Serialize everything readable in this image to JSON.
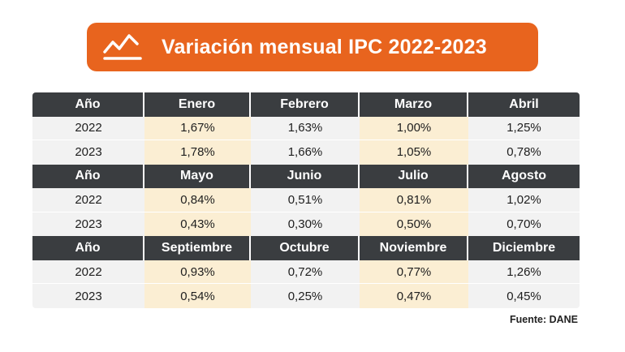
{
  "title": "Variación mensual IPC 2022-2023",
  "icon": "line-chart-icon",
  "colors": {
    "banner": "#e8641e",
    "header": "#3a3d40",
    "row": "#f2f2f2",
    "highlight": "#fbeed3"
  },
  "chart_data": {
    "type": "table",
    "title": "Variación mensual IPC 2022-2023",
    "year_header": "Año",
    "years": [
      "2022",
      "2023"
    ],
    "sections": [
      {
        "months": [
          "Enero",
          "Febrero",
          "Marzo",
          "Abril"
        ],
        "rows": [
          [
            "1,67%",
            "1,63%",
            "1,00%",
            "1,25%"
          ],
          [
            "1,78%",
            "1,66%",
            "1,05%",
            "0,78%"
          ]
        ]
      },
      {
        "months": [
          "Mayo",
          "Junio",
          "Julio",
          "Agosto"
        ],
        "rows": [
          [
            "0,84%",
            "0,51%",
            "0,81%",
            "1,02%"
          ],
          [
            "0,43%",
            "0,30%",
            "0,50%",
            "0,70%"
          ]
        ]
      },
      {
        "months": [
          "Septiembre",
          "Octubre",
          "Noviembre",
          "Diciembre"
        ],
        "rows": [
          [
            "0,93%",
            "0,72%",
            "0,77%",
            "1,26%"
          ],
          [
            "0,54%",
            "0,25%",
            "0,47%",
            "0,45%"
          ]
        ]
      }
    ]
  },
  "source": "Fuente: DANE"
}
